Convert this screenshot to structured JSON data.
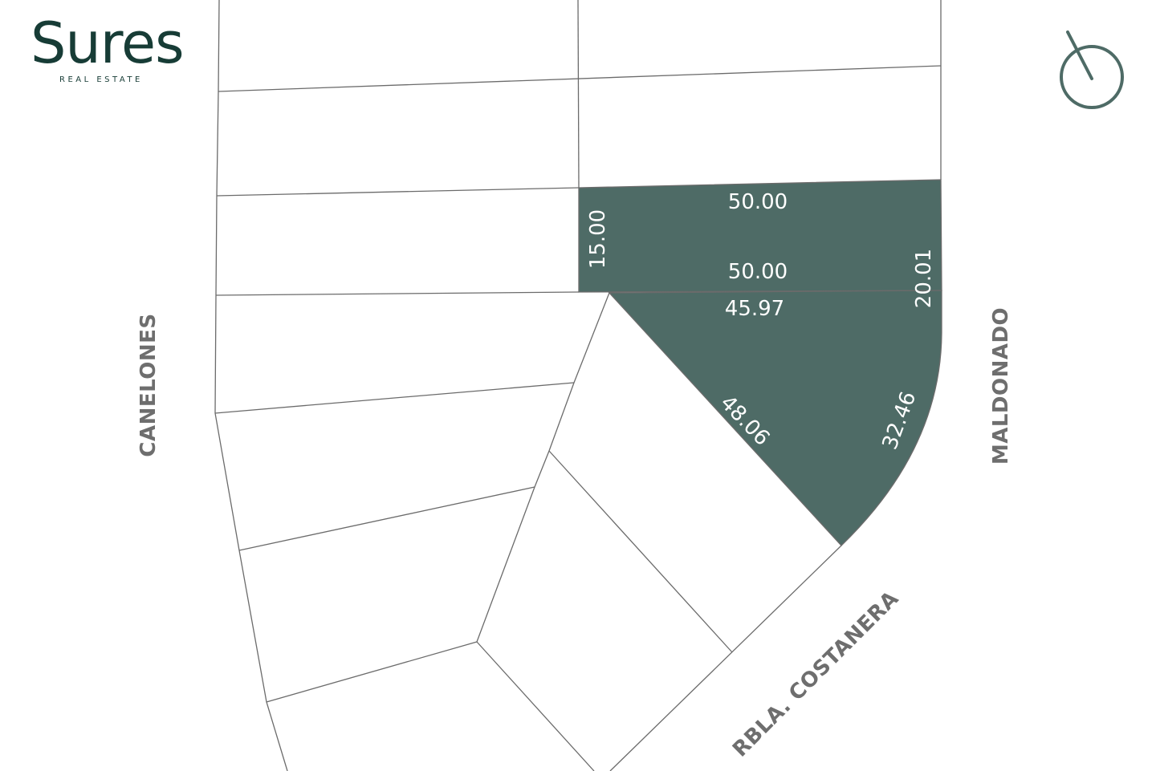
{
  "brand": {
    "name": "Sures",
    "tagline": "REAL ESTATE",
    "color": "#173c36"
  },
  "map": {
    "highlight_color": "#4e6b66",
    "line_color": "#6b6b6b",
    "streets": {
      "west": "CANELONES",
      "east": "MALDONADO",
      "south": "RBLA. COSTANERA"
    },
    "selected_lot_dimensions": {
      "upper_north": "50.00",
      "upper_west": "15.00",
      "upper_south": "50.00",
      "east": "20.01",
      "lower_north": "45.97",
      "diagonal": "48.06",
      "arc": "32.46"
    }
  },
  "compass": {
    "icon": "north-compass-icon",
    "color": "#4e6b66"
  }
}
